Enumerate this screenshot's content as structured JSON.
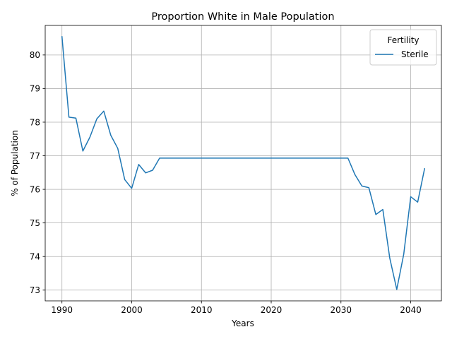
{
  "chart_data": {
    "type": "line",
    "title": "Proportion White in Male Population",
    "xlabel": "Years",
    "ylabel": "% of Population",
    "xlim": [
      1987.6,
      2044.4
    ],
    "ylim": [
      72.68,
      80.88
    ],
    "xticks": [
      1990,
      2000,
      2010,
      2020,
      2030,
      2040
    ],
    "yticks": [
      73,
      74,
      75,
      76,
      77,
      78,
      79,
      80
    ],
    "grid": true,
    "legend": {
      "title": "Fertility",
      "placement": "top-right"
    },
    "series": [
      {
        "name": "Sterile",
        "color": "#1f77b4",
        "x": [
          1990,
          1991,
          1992,
          1993,
          1994,
          1995,
          1996,
          1997,
          1998,
          1999,
          2000,
          2001,
          2002,
          2003,
          2004,
          2005,
          2006,
          2007,
          2008,
          2009,
          2010,
          2011,
          2012,
          2013,
          2014,
          2015,
          2016,
          2017,
          2018,
          2019,
          2020,
          2021,
          2022,
          2023,
          2024,
          2025,
          2026,
          2027,
          2028,
          2029,
          2030,
          2031,
          2032,
          2033,
          2034,
          2035,
          2036,
          2037,
          2038,
          2039,
          2040,
          2041,
          2042
        ],
        "y": [
          80.56,
          78.15,
          78.12,
          77.14,
          77.55,
          78.1,
          78.33,
          77.61,
          77.22,
          76.29,
          76.03,
          76.74,
          76.49,
          76.57,
          76.93,
          76.93,
          76.93,
          76.93,
          76.93,
          76.93,
          76.93,
          76.93,
          76.93,
          76.93,
          76.93,
          76.93,
          76.93,
          76.93,
          76.93,
          76.93,
          76.93,
          76.93,
          76.93,
          76.93,
          76.93,
          76.93,
          76.93,
          76.93,
          76.93,
          76.93,
          76.93,
          76.93,
          76.44,
          76.1,
          76.05,
          75.25,
          75.4,
          73.95,
          73.02,
          74.07,
          75.78,
          75.62,
          76.63
        ]
      }
    ]
  }
}
